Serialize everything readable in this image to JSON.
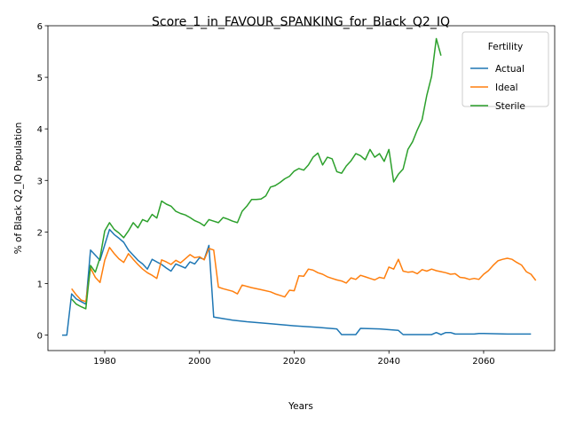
{
  "chart_data": {
    "type": "line",
    "title": "Score_1_in_FAVOUR_SPANKING_for_Black_Q2_IQ",
    "xlabel": "Years",
    "ylabel": "% of Black Q2_IQ Population",
    "xlim": [
      1968,
      2075
    ],
    "ylim": [
      -0.3,
      6.0
    ],
    "xticks": [
      1980,
      2000,
      2020,
      2040,
      2060
    ],
    "yticks": [
      0,
      1,
      2,
      3,
      4,
      5,
      6
    ],
    "grid": false,
    "legend": {
      "title": "Fertility",
      "position": "top-right"
    },
    "series": [
      {
        "name": "Actual",
        "color": "#1f77b4",
        "points": [
          [
            1971,
            0
          ],
          [
            1972,
            0
          ],
          [
            1973,
            0.8
          ],
          [
            1974,
            0.7
          ],
          [
            1975,
            0.65
          ],
          [
            1976,
            0.6
          ],
          [
            1977,
            1.65
          ],
          [
            1978,
            1.55
          ],
          [
            1979,
            1.45
          ],
          [
            1980,
            1.75
          ],
          [
            1981,
            2.05
          ],
          [
            1982,
            1.95
          ],
          [
            1983,
            1.88
          ],
          [
            1984,
            1.8
          ],
          [
            1985,
            1.65
          ],
          [
            1986,
            1.55
          ],
          [
            1987,
            1.45
          ],
          [
            1988,
            1.38
          ],
          [
            1989,
            1.28
          ],
          [
            1990,
            1.47
          ],
          [
            1991,
            1.42
          ],
          [
            1992,
            1.37
          ],
          [
            1993,
            1.3
          ],
          [
            1994,
            1.24
          ],
          [
            1995,
            1.38
          ],
          [
            1996,
            1.34
          ],
          [
            1997,
            1.3
          ],
          [
            1998,
            1.42
          ],
          [
            1999,
            1.38
          ],
          [
            2000,
            1.5
          ],
          [
            2001,
            1.47
          ],
          [
            2002,
            1.74
          ],
          [
            2003,
            0.35
          ],
          [
            2005,
            0.32
          ],
          [
            2007,
            0.29
          ],
          [
            2010,
            0.26
          ],
          [
            2015,
            0.22
          ],
          [
            2020,
            0.18
          ],
          [
            2025,
            0.15
          ],
          [
            2029,
            0.12
          ],
          [
            2030,
            0.01
          ],
          [
            2033,
            0.01
          ],
          [
            2034,
            0.13
          ],
          [
            2038,
            0.12
          ],
          [
            2042,
            0.09
          ],
          [
            2043,
            0.01
          ],
          [
            2049,
            0.01
          ],
          [
            2050,
            0.05
          ],
          [
            2051,
            0.01
          ],
          [
            2052,
            0.05
          ],
          [
            2053,
            0.05
          ],
          [
            2054,
            0.02
          ],
          [
            2058,
            0.02
          ],
          [
            2059,
            0.03
          ],
          [
            2060,
            0.03
          ],
          [
            2065,
            0.02
          ],
          [
            2070,
            0.02
          ]
        ]
      },
      {
        "name": "Ideal",
        "color": "#ff7f0e",
        "points": [
          [
            1973,
            0.9
          ],
          [
            1974,
            0.78
          ],
          [
            1975,
            0.68
          ],
          [
            1976,
            0.65
          ],
          [
            1977,
            1.3
          ],
          [
            1978,
            1.12
          ],
          [
            1979,
            1.02
          ],
          [
            1980,
            1.45
          ],
          [
            1981,
            1.7
          ],
          [
            1982,
            1.58
          ],
          [
            1983,
            1.48
          ],
          [
            1984,
            1.41
          ],
          [
            1985,
            1.58
          ],
          [
            1986,
            1.47
          ],
          [
            1987,
            1.37
          ],
          [
            1988,
            1.28
          ],
          [
            1989,
            1.21
          ],
          [
            1990,
            1.16
          ],
          [
            1991,
            1.1
          ],
          [
            1992,
            1.46
          ],
          [
            1993,
            1.42
          ],
          [
            1994,
            1.37
          ],
          [
            1995,
            1.45
          ],
          [
            1996,
            1.4
          ],
          [
            1997,
            1.48
          ],
          [
            1998,
            1.56
          ],
          [
            1999,
            1.5
          ],
          [
            2000,
            1.52
          ],
          [
            2001,
            1.46
          ],
          [
            2002,
            1.68
          ],
          [
            2003,
            1.65
          ],
          [
            2004,
            0.93
          ],
          [
            2005,
            0.9
          ],
          [
            2007,
            0.85
          ],
          [
            2008,
            0.8
          ],
          [
            2009,
            0.97
          ],
          [
            2011,
            0.92
          ],
          [
            2013,
            0.88
          ],
          [
            2015,
            0.84
          ],
          [
            2016,
            0.8
          ],
          [
            2017,
            0.77
          ],
          [
            2018,
            0.74
          ],
          [
            2019,
            0.87
          ],
          [
            2020,
            0.86
          ],
          [
            2021,
            1.15
          ],
          [
            2022,
            1.14
          ],
          [
            2023,
            1.28
          ],
          [
            2024,
            1.26
          ],
          [
            2025,
            1.21
          ],
          [
            2026,
            1.18
          ],
          [
            2027,
            1.13
          ],
          [
            2028,
            1.1
          ],
          [
            2029,
            1.07
          ],
          [
            2030,
            1.05
          ],
          [
            2031,
            1.01
          ],
          [
            2032,
            1.11
          ],
          [
            2033,
            1.08
          ],
          [
            2034,
            1.16
          ],
          [
            2035,
            1.13
          ],
          [
            2036,
            1.1
          ],
          [
            2037,
            1.07
          ],
          [
            2038,
            1.12
          ],
          [
            2039,
            1.1
          ],
          [
            2040,
            1.32
          ],
          [
            2041,
            1.28
          ],
          [
            2042,
            1.47
          ],
          [
            2043,
            1.24
          ],
          [
            2044,
            1.22
          ],
          [
            2045,
            1.23
          ],
          [
            2046,
            1.19
          ],
          [
            2047,
            1.27
          ],
          [
            2048,
            1.24
          ],
          [
            2049,
            1.28
          ],
          [
            2050,
            1.25
          ],
          [
            2051,
            1.23
          ],
          [
            2052,
            1.21
          ],
          [
            2053,
            1.18
          ],
          [
            2054,
            1.19
          ],
          [
            2055,
            1.12
          ],
          [
            2056,
            1.11
          ],
          [
            2057,
            1.08
          ],
          [
            2058,
            1.1
          ],
          [
            2059,
            1.08
          ],
          [
            2060,
            1.18
          ],
          [
            2061,
            1.25
          ],
          [
            2062,
            1.35
          ],
          [
            2063,
            1.44
          ],
          [
            2064,
            1.47
          ],
          [
            2065,
            1.49
          ],
          [
            2066,
            1.47
          ],
          [
            2067,
            1.41
          ],
          [
            2068,
            1.36
          ],
          [
            2069,
            1.23
          ],
          [
            2070,
            1.18
          ],
          [
            2071,
            1.06
          ]
        ]
      },
      {
        "name": "Sterile",
        "color": "#2ca02c",
        "points": [
          [
            1973,
            0.7
          ],
          [
            1974,
            0.6
          ],
          [
            1975,
            0.55
          ],
          [
            1976,
            0.51
          ],
          [
            1977,
            1.35
          ],
          [
            1978,
            1.22
          ],
          [
            1979,
            1.5
          ],
          [
            1980,
            2.02
          ],
          [
            1981,
            2.18
          ],
          [
            1982,
            2.05
          ],
          [
            1983,
            1.98
          ],
          [
            1984,
            1.89
          ],
          [
            1985,
            2.02
          ],
          [
            1986,
            2.18
          ],
          [
            1987,
            2.08
          ],
          [
            1988,
            2.24
          ],
          [
            1989,
            2.2
          ],
          [
            1990,
            2.34
          ],
          [
            1991,
            2.27
          ],
          [
            1992,
            2.6
          ],
          [
            1993,
            2.54
          ],
          [
            1994,
            2.5
          ],
          [
            1995,
            2.4
          ],
          [
            1996,
            2.36
          ],
          [
            1997,
            2.33
          ],
          [
            1998,
            2.28
          ],
          [
            1999,
            2.22
          ],
          [
            2000,
            2.18
          ],
          [
            2001,
            2.12
          ],
          [
            2002,
            2.24
          ],
          [
            2003,
            2.21
          ],
          [
            2004,
            2.18
          ],
          [
            2005,
            2.28
          ],
          [
            2006,
            2.25
          ],
          [
            2007,
            2.21
          ],
          [
            2008,
            2.18
          ],
          [
            2009,
            2.4
          ],
          [
            2010,
            2.5
          ],
          [
            2011,
            2.63
          ],
          [
            2012,
            2.63
          ],
          [
            2013,
            2.64
          ],
          [
            2014,
            2.7
          ],
          [
            2015,
            2.87
          ],
          [
            2016,
            2.9
          ],
          [
            2017,
            2.96
          ],
          [
            2018,
            3.03
          ],
          [
            2019,
            3.08
          ],
          [
            2020,
            3.18
          ],
          [
            2021,
            3.23
          ],
          [
            2022,
            3.2
          ],
          [
            2023,
            3.3
          ],
          [
            2024,
            3.45
          ],
          [
            2025,
            3.53
          ],
          [
            2026,
            3.3
          ],
          [
            2027,
            3.45
          ],
          [
            2028,
            3.42
          ],
          [
            2029,
            3.17
          ],
          [
            2030,
            3.14
          ],
          [
            2031,
            3.28
          ],
          [
            2032,
            3.38
          ],
          [
            2033,
            3.52
          ],
          [
            2034,
            3.48
          ],
          [
            2035,
            3.4
          ],
          [
            2036,
            3.6
          ],
          [
            2037,
            3.45
          ],
          [
            2038,
            3.52
          ],
          [
            2039,
            3.37
          ],
          [
            2040,
            3.6
          ],
          [
            2041,
            2.97
          ],
          [
            2042,
            3.12
          ],
          [
            2043,
            3.22
          ],
          [
            2044,
            3.6
          ],
          [
            2045,
            3.75
          ],
          [
            2046,
            3.98
          ],
          [
            2047,
            4.18
          ],
          [
            2048,
            4.65
          ],
          [
            2049,
            5.02
          ],
          [
            2050,
            5.75
          ],
          [
            2051,
            5.42
          ]
        ]
      }
    ]
  }
}
